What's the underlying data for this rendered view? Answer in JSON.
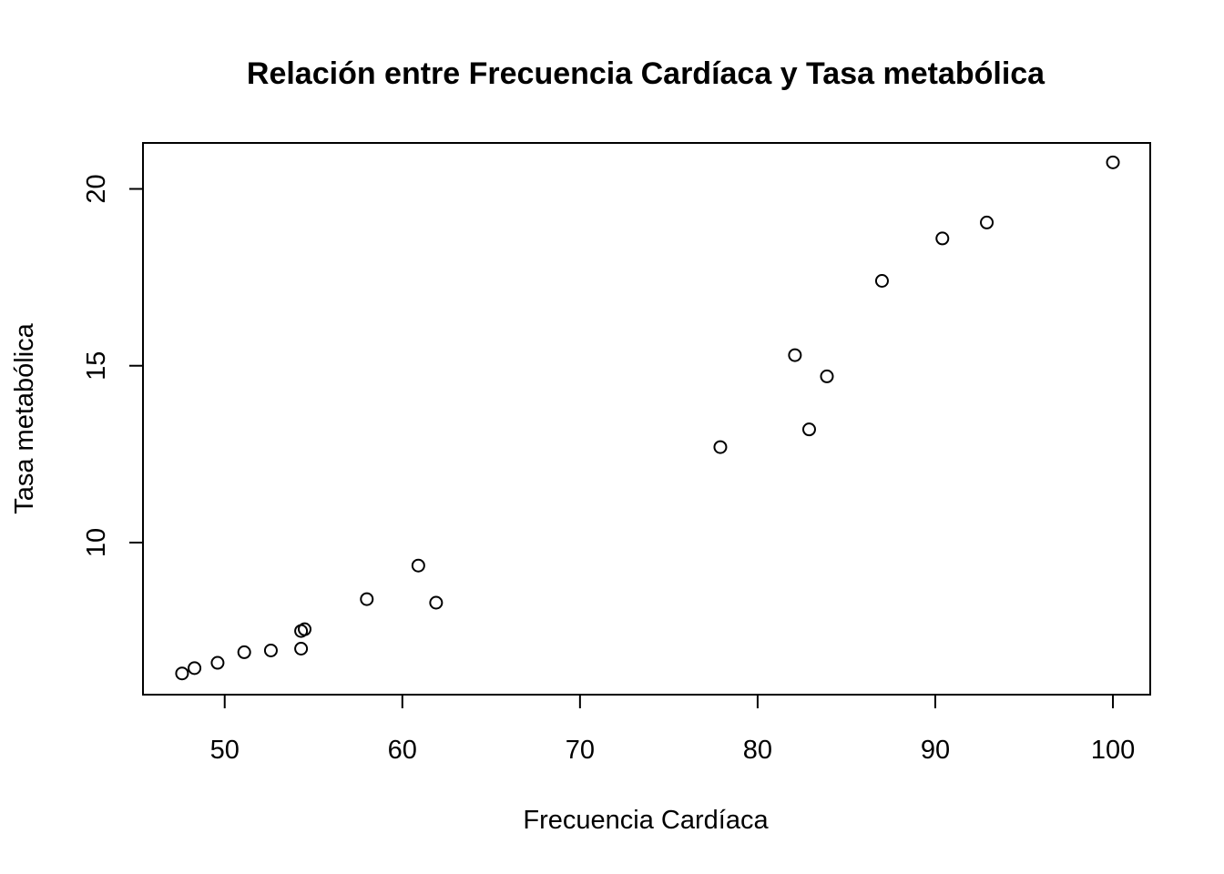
{
  "chart_data": {
    "type": "scatter",
    "title": "Relación entre Frecuencia Cardíaca y Tasa metabólica",
    "xlabel": "Frecuencia Cardíaca",
    "ylabel": "Tasa metabólica",
    "xlim": [
      45.4,
      102.1
    ],
    "ylim": [
      5.7,
      21.3
    ],
    "x_ticks": [
      50,
      60,
      70,
      80,
      90,
      100
    ],
    "x_tick_labels": [
      "50",
      "60",
      "70",
      "80",
      "90",
      "100"
    ],
    "y_ticks": [
      10,
      15,
      20
    ],
    "y_tick_labels": [
      "10",
      "15",
      "20"
    ],
    "grid": false,
    "legend": "none",
    "marker": "open-circle",
    "points": [
      {
        "x": 47.6,
        "y": 6.3
      },
      {
        "x": 48.3,
        "y": 6.45
      },
      {
        "x": 49.6,
        "y": 6.6
      },
      {
        "x": 51.1,
        "y": 6.9
      },
      {
        "x": 52.6,
        "y": 6.95
      },
      {
        "x": 54.3,
        "y": 7.0
      },
      {
        "x": 54.3,
        "y": 7.5
      },
      {
        "x": 54.5,
        "y": 7.55
      },
      {
        "x": 58.0,
        "y": 8.4
      },
      {
        "x": 60.9,
        "y": 9.35
      },
      {
        "x": 61.9,
        "y": 8.3
      },
      {
        "x": 77.9,
        "y": 12.7
      },
      {
        "x": 82.1,
        "y": 15.3
      },
      {
        "x": 82.9,
        "y": 13.2
      },
      {
        "x": 83.9,
        "y": 14.7
      },
      {
        "x": 87.0,
        "y": 17.4
      },
      {
        "x": 90.4,
        "y": 18.6
      },
      {
        "x": 92.9,
        "y": 19.05
      },
      {
        "x": 100.0,
        "y": 20.75
      }
    ]
  }
}
